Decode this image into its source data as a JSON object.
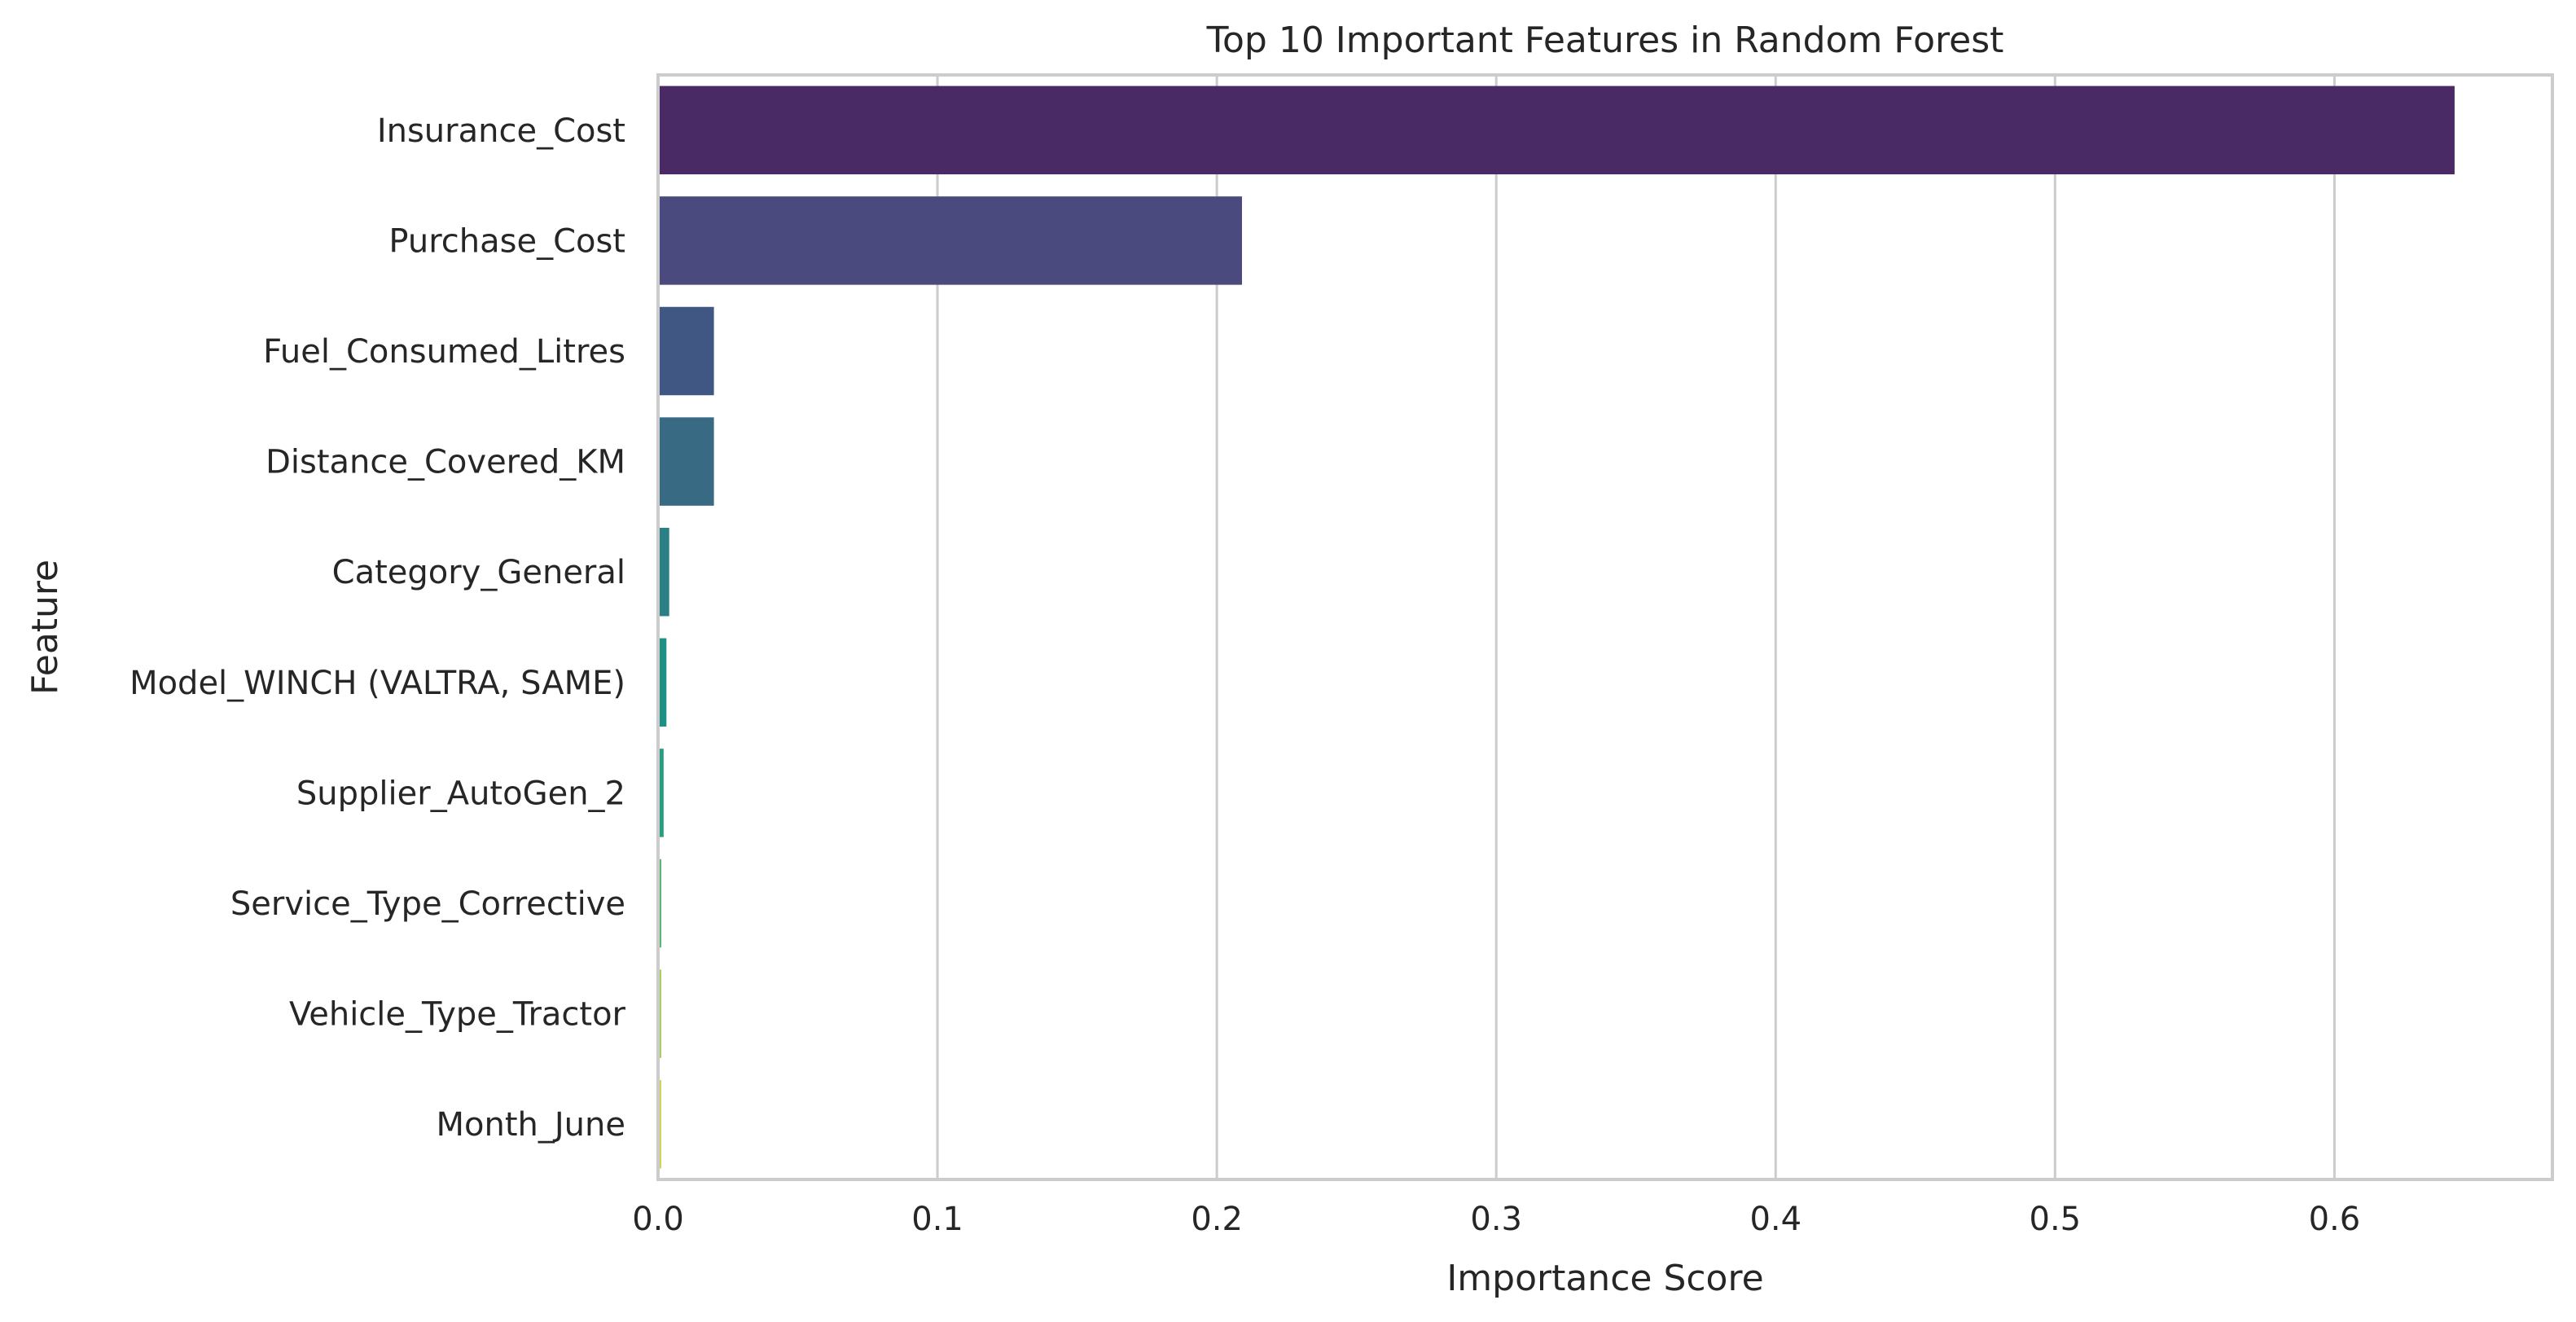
{
  "chart_data": {
    "type": "bar",
    "orientation": "horizontal",
    "title": "Top 10 Important Features in Random Forest",
    "xlabel": "Importance Score",
    "ylabel": "Feature",
    "xlim": [
      0,
      0.678
    ],
    "xticks": [
      0.0,
      0.1,
      0.2,
      0.3,
      0.4,
      0.5,
      0.6
    ],
    "xtick_labels": [
      "0.0",
      "0.1",
      "0.2",
      "0.3",
      "0.4",
      "0.5",
      "0.6"
    ],
    "grid": "vertical",
    "categories": [
      "Insurance_Cost",
      "Purchase_Cost",
      "Fuel_Consumed_Litres",
      "Distance_Covered_KM",
      "Category_General",
      "Model_WINCH (VALTRA, SAME)",
      "Supplier_AutoGen_2",
      "Service_Type_Corrective",
      "Vehicle_Type_Tractor",
      "Month_June"
    ],
    "values": [
      0.643,
      0.209,
      0.02,
      0.02,
      0.004,
      0.003,
      0.002,
      0.001,
      0.001,
      0.001
    ],
    "colors": [
      "#4a2a65",
      "#4a4a7e",
      "#415783",
      "#386a84",
      "#2c7f85",
      "#1f9083",
      "#2a9d80",
      "#5bb573",
      "#a8cf5b",
      "#d3d34f"
    ]
  }
}
